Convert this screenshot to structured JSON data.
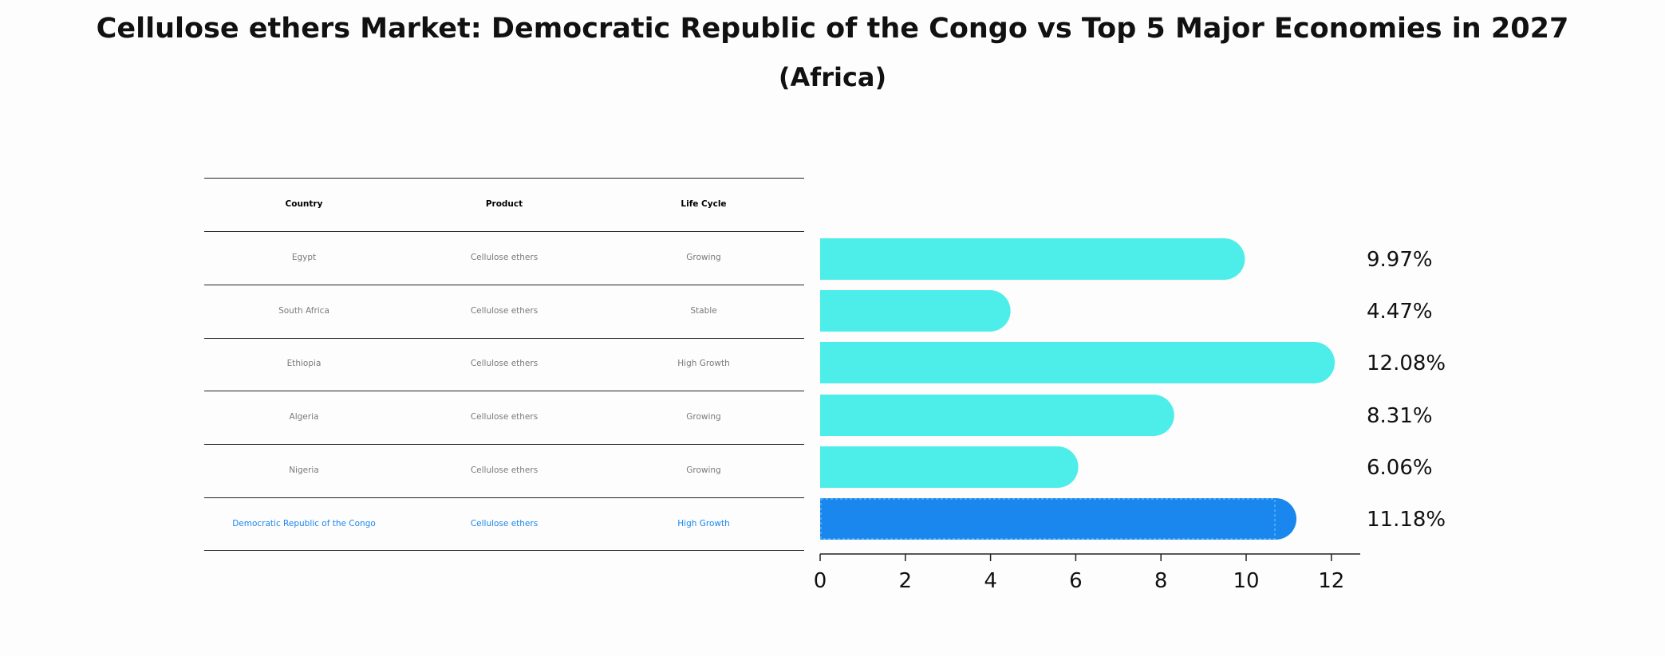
{
  "title": "Cellulose ethers Market: Democratic Republic of the Congo vs Top 5 Major Economies in 2027",
  "subtitle": "(Africa)",
  "table": {
    "headers": [
      "Country",
      "Product",
      "Life Cycle"
    ],
    "rows": [
      {
        "country": "Egypt",
        "product": "Cellulose ethers",
        "life_cycle": "Growing"
      },
      {
        "country": "South Africa",
        "product": "Cellulose ethers",
        "life_cycle": "Stable"
      },
      {
        "country": "Ethiopia",
        "product": "Cellulose ethers",
        "life_cycle": "High Growth"
      },
      {
        "country": "Algeria",
        "product": "Cellulose ethers",
        "life_cycle": "Growing"
      },
      {
        "country": "Nigeria",
        "product": "Cellulose ethers",
        "life_cycle": "Growing"
      },
      {
        "country": "Democratic Republic of the Congo",
        "product": "Cellulose ethers",
        "life_cycle": "High Growth"
      }
    ]
  },
  "chart_data": {
    "type": "bar",
    "orientation": "horizontal",
    "categories": [
      "Egypt",
      "South Africa",
      "Ethiopia",
      "Algeria",
      "Nigeria",
      "Democratic Republic of the Congo"
    ],
    "values": [
      9.97,
      4.47,
      12.08,
      8.31,
      6.06,
      11.18
    ],
    "value_labels": [
      "9.97%",
      "4.47%",
      "12.08%",
      "8.31%",
      "6.06%",
      "11.18%"
    ],
    "highlight_index": 5,
    "colors": {
      "default": "#4deeea",
      "highlight": "#1a87ee"
    },
    "xticks": [
      0,
      2,
      4,
      6,
      8,
      10,
      12
    ],
    "xlim": [
      0,
      12.65
    ],
    "xlabel": "",
    "ylabel": ""
  }
}
